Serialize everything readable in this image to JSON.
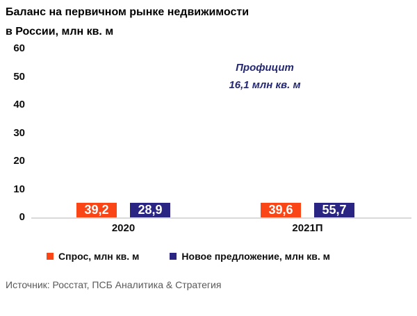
{
  "page": {
    "title_lines": [
      "Баланс на первичном рынке недвижимости",
      "в России, млн кв. м"
    ],
    "source": "Источник: Росстат, ПСБ Аналитика & Стратегия"
  },
  "annotation": {
    "line1": "Профицит",
    "line2": "16,1 млн кв. м"
  },
  "colors": {
    "demand_orange": "#FA4616",
    "supply_navy": "#2A2483",
    "axis_line": "#D9D9D9",
    "annotation_text": "#232773",
    "source_text": "#595959"
  },
  "chart_data": {
    "type": "bar",
    "title": "Баланс на первичном рынке недвижимости в России, млн кв. м",
    "categories": [
      "2020",
      "2021П"
    ],
    "series": [
      {
        "name": "Спрос, млн кв. м",
        "color": "#FA4616",
        "values": [
          39.2,
          39.6
        ]
      },
      {
        "name": "Новое предложение, млн кв. м",
        "color": "#2A2483",
        "values": [
          28.9,
          55.7
        ]
      }
    ],
    "value_labels": [
      [
        "39,2",
        "39,6"
      ],
      [
        "28,9",
        "55,7"
      ]
    ],
    "annotation": "Профицит 16,1 млн кв. м",
    "xlabel": "",
    "ylabel": "",
    "ylim": [
      0,
      60
    ],
    "yticks": [
      0,
      10,
      20,
      30,
      40,
      50,
      60
    ],
    "grid": false,
    "legend_position": "bottom",
    "decimal_separator": ","
  }
}
